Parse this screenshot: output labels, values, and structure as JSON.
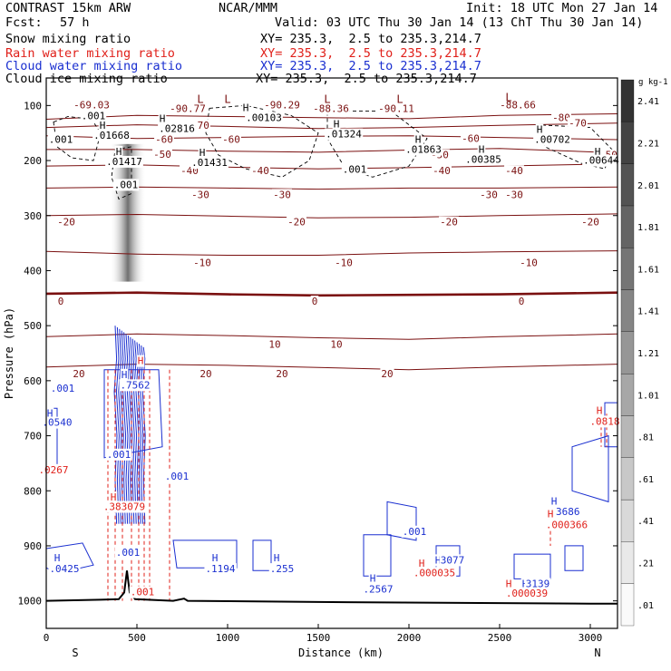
{
  "header": {
    "model": "CONTRAST 15km ARW",
    "center": "NCAR/MMM",
    "init": "Init: 18 UTC Mon 27 Jan 14",
    "fcst_label": "Fcst:",
    "fcst_value": "57 h",
    "valid": "Valid: 03 UTC Thu 30 Jan 14 (13 ChT Thu 30 Jan 14)"
  },
  "fields": [
    {
      "name": "Snow mixing ratio",
      "xy": "XY= 235.3,  2.5 to 235.3,214.7",
      "color": "#000000"
    },
    {
      "name": "Rain water mixing ratio",
      "xy": "XY= 235.3,  2.5 to 235.3,214.7",
      "color": "#e0201a"
    },
    {
      "name": "Cloud water mixing ratio",
      "xy": "XY= 235.3,  2.5 to 235.3,214.7",
      "color": "#1a2fd0"
    },
    {
      "name": "Cloud ice mixing ratio",
      "xy": "XY= 235.3,  2.5 to 235.3,214.7",
      "color": "#000000"
    }
  ],
  "chart_data": {
    "type": "heatmap",
    "xlabel": "Distance (km)",
    "ylabel": "Pressure (hPa)",
    "xlim": [
      0,
      3150
    ],
    "ylim": [
      1050,
      50
    ],
    "x_ticks": [
      0,
      500,
      1000,
      1500,
      2000,
      2500,
      3000
    ],
    "y_ticks": [
      100,
      200,
      300,
      400,
      500,
      600,
      700,
      800,
      900,
      1000
    ],
    "x_end_labels": {
      "left": "S",
      "right": "N"
    },
    "colorbar": {
      "unit": "g kg-1",
      "levels": [
        ".01",
        ".21",
        ".41",
        ".61",
        ".81",
        "1.01",
        "1.21",
        "1.41",
        "1.61",
        "1.81",
        "2.01",
        "2.21",
        "2.41"
      ]
    },
    "terrain_surface": [
      [
        0,
        1000
      ],
      [
        300,
        998
      ],
      [
        400,
        997
      ],
      [
        430,
        985
      ],
      [
        445,
        945
      ],
      [
        460,
        985
      ],
      [
        490,
        997
      ],
      [
        700,
        1000
      ],
      [
        760,
        996
      ],
      [
        780,
        1000
      ],
      [
        1500,
        1002
      ],
      [
        2500,
        1004
      ],
      [
        3000,
        1005
      ],
      [
        3150,
        1005
      ]
    ],
    "temperature_isotherms": [
      {
        "label": "-80",
        "points": [
          [
            0,
            125
          ],
          [
            500,
            118
          ],
          [
            1000,
            120
          ],
          [
            1500,
            122
          ],
          [
            2000,
            124
          ],
          [
            2500,
            118
          ],
          [
            3150,
            115
          ]
        ]
      },
      {
        "label": "-70",
        "points": [
          [
            0,
            140
          ],
          [
            500,
            135
          ],
          [
            1000,
            138
          ],
          [
            1500,
            142
          ],
          [
            2000,
            140
          ],
          [
            2500,
            136
          ],
          [
            3150,
            132
          ]
        ]
      },
      {
        "label": "-60",
        "points": [
          [
            0,
            155
          ],
          [
            500,
            160
          ],
          [
            1000,
            158
          ],
          [
            1500,
            156
          ],
          [
            2000,
            155
          ],
          [
            2500,
            158
          ],
          [
            3150,
            162
          ]
        ]
      },
      {
        "label": "-50",
        "points": [
          [
            0,
            180
          ],
          [
            500,
            180
          ],
          [
            1000,
            183
          ],
          [
            1500,
            185
          ],
          [
            2000,
            181
          ],
          [
            2500,
            178
          ],
          [
            3150,
            186
          ]
        ]
      },
      {
        "label": "-40",
        "points": [
          [
            0,
            210
          ],
          [
            500,
            208
          ],
          [
            1000,
            212
          ],
          [
            1500,
            215
          ],
          [
            2000,
            213
          ],
          [
            2500,
            210
          ],
          [
            3150,
            206
          ]
        ]
      },
      {
        "label": "-30",
        "points": [
          [
            0,
            250
          ],
          [
            500,
            248
          ],
          [
            1000,
            250
          ],
          [
            1500,
            252
          ],
          [
            2000,
            250
          ],
          [
            2500,
            250
          ],
          [
            3150,
            248
          ]
        ]
      },
      {
        "label": "-20",
        "points": [
          [
            0,
            300
          ],
          [
            500,
            298
          ],
          [
            1000,
            301
          ],
          [
            1500,
            304
          ],
          [
            2000,
            303
          ],
          [
            2500,
            300
          ],
          [
            3150,
            297
          ]
        ]
      },
      {
        "label": "-10",
        "points": [
          [
            0,
            365
          ],
          [
            500,
            370
          ],
          [
            1000,
            372
          ],
          [
            1500,
            372
          ],
          [
            2000,
            368
          ],
          [
            2500,
            366
          ],
          [
            3150,
            364
          ]
        ]
      },
      {
        "label": "0",
        "points": [
          [
            0,
            442
          ],
          [
            500,
            440
          ],
          [
            1000,
            443
          ],
          [
            1500,
            445
          ],
          [
            2000,
            444
          ],
          [
            2500,
            443
          ],
          [
            3150,
            440
          ]
        ]
      },
      {
        "label": "10",
        "points": [
          [
            0,
            520
          ],
          [
            500,
            515
          ],
          [
            1000,
            518
          ],
          [
            1500,
            522
          ],
          [
            2000,
            525
          ],
          [
            2500,
            520
          ],
          [
            3150,
            515
          ]
        ]
      },
      {
        "label": "20",
        "points": [
          [
            0,
            575
          ],
          [
            500,
            570
          ],
          [
            1000,
            572
          ],
          [
            1500,
            576
          ],
          [
            2000,
            580
          ],
          [
            2500,
            575
          ],
          [
            3150,
            570
          ]
        ]
      }
    ],
    "temperature_labels": [
      {
        "text": "-69.03",
        "x": 250,
        "y": 105
      },
      {
        "text": "-90.77",
        "x": 780,
        "y": 112
      },
      {
        "text": "-90.29",
        "x": 1300,
        "y": 105
      },
      {
        "text": "-88.36",
        "x": 1570,
        "y": 112
      },
      {
        "text": "-90.11",
        "x": 1930,
        "y": 112
      },
      {
        "text": "-88.66",
        "x": 2600,
        "y": 105
      },
      {
        "text": "-80",
        "x": 2840,
        "y": 128
      },
      {
        "text": "-70",
        "x": 850,
        "y": 142
      },
      {
        "text": "-70",
        "x": 2930,
        "y": 138
      },
      {
        "text": "-60",
        "x": 650,
        "y": 168
      },
      {
        "text": "-60",
        "x": 1020,
        "y": 168
      },
      {
        "text": "-60",
        "x": 2340,
        "y": 166
      },
      {
        "text": "-50",
        "x": 640,
        "y": 195
      },
      {
        "text": "-50",
        "x": 2170,
        "y": 196
      },
      {
        "text": "-50",
        "x": 3100,
        "y": 196
      },
      {
        "text": "-40",
        "x": 790,
        "y": 225
      },
      {
        "text": "-40",
        "x": 1180,
        "y": 225
      },
      {
        "text": "-40",
        "x": 2180,
        "y": 225
      },
      {
        "text": "-40",
        "x": 2580,
        "y": 225
      },
      {
        "text": "-30",
        "x": 850,
        "y": 268
      },
      {
        "text": "-30",
        "x": 1300,
        "y": 268
      },
      {
        "text": "-30",
        "x": 2440,
        "y": 268
      },
      {
        "text": "-30",
        "x": 2580,
        "y": 268
      },
      {
        "text": "-20",
        "x": 110,
        "y": 318
      },
      {
        "text": "-20",
        "x": 1380,
        "y": 318
      },
      {
        "text": "-20",
        "x": 2220,
        "y": 318
      },
      {
        "text": "-20",
        "x": 3000,
        "y": 318
      },
      {
        "text": "-10",
        "x": 860,
        "y": 392
      },
      {
        "text": "-10",
        "x": 1640,
        "y": 392
      },
      {
        "text": "-10",
        "x": 2660,
        "y": 392
      },
      {
        "text": "0",
        "x": 1480,
        "y": 462
      },
      {
        "text": "0",
        "x": 2620,
        "y": 462
      },
      {
        "text": "0",
        "x": 80,
        "y": 462
      },
      {
        "text": "10",
        "x": 1260,
        "y": 540
      },
      {
        "text": "10",
        "x": 1600,
        "y": 540
      },
      {
        "text": "20",
        "x": 180,
        "y": 594
      },
      {
        "text": "20",
        "x": 880,
        "y": 594
      },
      {
        "text": "20",
        "x": 1300,
        "y": 594
      },
      {
        "text": "20",
        "x": 1880,
        "y": 594
      }
    ],
    "low_markers": [
      {
        "x": 850,
        "y": 95
      },
      {
        "x": 1000,
        "y": 95
      },
      {
        "x": 1550,
        "y": 95
      },
      {
        "x": 1950,
        "y": 95
      },
      {
        "x": 2550,
        "y": 92
      }
    ],
    "cloud_ice_labels": [
      {
        "text": ".001",
        "x": 260,
        "y": 125
      },
      {
        "text": "H",
        "x": 310,
        "y": 142
      },
      {
        "text": ".01668",
        "x": 360,
        "y": 160
      },
      {
        "text": "H",
        "x": 640,
        "y": 130
      },
      {
        "text": ".02816",
        "x": 720,
        "y": 148
      },
      {
        "text": "H",
        "x": 1100,
        "y": 110
      },
      {
        "text": ".00103",
        "x": 1200,
        "y": 128
      },
      {
        "text": "H",
        "x": 1600,
        "y": 140
      },
      {
        "text": ".01324",
        "x": 1640,
        "y": 158
      },
      {
        "text": "H",
        "x": 2050,
        "y": 168
      },
      {
        "text": ".01863",
        "x": 2080,
        "y": 186
      },
      {
        "text": "H",
        "x": 2400,
        "y": 186
      },
      {
        "text": ".00385",
        "x": 2410,
        "y": 204
      },
      {
        "text": "H",
        "x": 2720,
        "y": 150
      },
      {
        "text": ".00702",
        "x": 2790,
        "y": 168
      },
      {
        "text": "H",
        "x": 3040,
        "y": 190
      },
      {
        "text": ".00644",
        "x": 3060,
        "y": 206
      },
      {
        "text": ".001",
        "x": 80,
        "y": 168
      },
      {
        "text": "H",
        "x": 400,
        "y": 190
      },
      {
        "text": ".01417",
        "x": 430,
        "y": 208
      },
      {
        "text": ".001",
        "x": 440,
        "y": 250
      },
      {
        "text": "H",
        "x": 860,
        "y": 192
      },
      {
        "text": ".01431",
        "x": 900,
        "y": 210
      },
      {
        "text": ".001",
        "x": 1700,
        "y": 222
      }
    ],
    "rain_labels": [
      {
        "text": ".0267",
        "x": 40,
        "y": 768
      },
      {
        "text": "H",
        "x": 370,
        "y": 818
      },
      {
        "text": ".383079",
        "x": 430,
        "y": 835
      },
      {
        "text": "H",
        "x": 520,
        "y": 570
      },
      {
        "text": ".001",
        "x": 530,
        "y": 990
      },
      {
        "text": "H",
        "x": 2070,
        "y": 938
      },
      {
        "text": ".000035",
        "x": 2140,
        "y": 955
      },
      {
        "text": "H",
        "x": 2550,
        "y": 975
      },
      {
        "text": ".000039",
        "x": 2650,
        "y": 992
      },
      {
        "text": "H",
        "x": 2780,
        "y": 848
      },
      {
        "text": ".000366",
        "x": 2870,
        "y": 868
      },
      {
        "text": "H",
        "x": 3050,
        "y": 660
      },
      {
        "text": ".0818",
        "x": 3080,
        "y": 680
      }
    ],
    "cloud_water_labels": [
      {
        "text": ".001",
        "x": 90,
        "y": 620
      },
      {
        "text": "H",
        "x": 20,
        "y": 665
      },
      {
        "text": ".0540",
        "x": 60,
        "y": 682
      },
      {
        "text": ".001",
        "x": 400,
        "y": 740
      },
      {
        "text": "H",
        "x": 430,
        "y": 595
      },
      {
        "text": ".7562",
        "x": 490,
        "y": 614
      },
      {
        "text": ".001",
        "x": 720,
        "y": 780
      },
      {
        "text": ".001",
        "x": 450,
        "y": 918
      },
      {
        "text": "H",
        "x": 60,
        "y": 928
      },
      {
        "text": ".0425",
        "x": 100,
        "y": 948
      },
      {
        "text": "H",
        "x": 930,
        "y": 928
      },
      {
        "text": ".1194",
        "x": 960,
        "y": 948
      },
      {
        "text": "H",
        "x": 1270,
        "y": 928
      },
      {
        "text": ".255",
        "x": 1300,
        "y": 948
      },
      {
        "text": "H",
        "x": 1800,
        "y": 965
      },
      {
        "text": ".2567",
        "x": 1830,
        "y": 985
      },
      {
        "text": ".001",
        "x": 2030,
        "y": 880
      },
      {
        "text": "H",
        "x": 2160,
        "y": 932
      },
      {
        "text": "3077",
        "x": 2240,
        "y": 932
      },
      {
        "text": "H",
        "x": 2640,
        "y": 975
      },
      {
        "text": "3139",
        "x": 2710,
        "y": 975
      },
      {
        "text": "H",
        "x": 2800,
        "y": 825
      },
      {
        "text": ".3686",
        "x": 2860,
        "y": 844
      }
    ]
  }
}
